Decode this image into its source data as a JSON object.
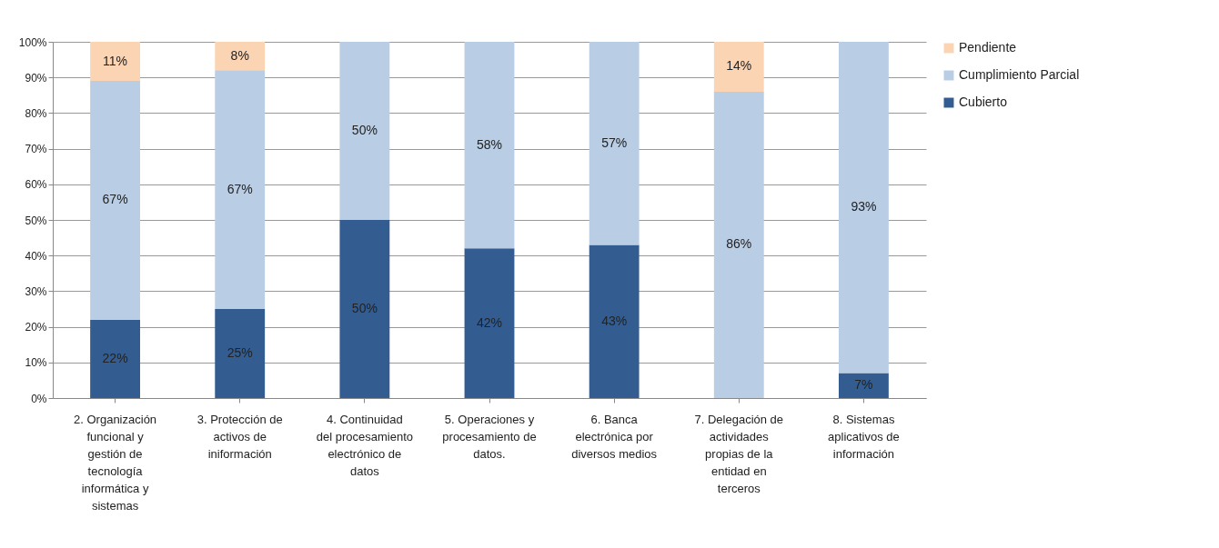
{
  "chart_data": {
    "type": "bar",
    "stacked": true,
    "categories": [
      "2. Organización funcional y gestión de tecnología informática y sistemas",
      "3. Protección de activos de iniformación",
      "4. Continuidad del procesamiento electrónico de datos",
      "5. Operaciones y procesamiento de datos.",
      "6. Banca electrónica por diversos medios",
      "7. Delegación de actividades propias de la entidad en terceros",
      "8. Sistemas aplicativos de información"
    ],
    "series": [
      {
        "name": "Cubierto",
        "color": "#335d91",
        "values": [
          22,
          25,
          50,
          42,
          43,
          null,
          7
        ],
        "value_labels": [
          "22%",
          "25%",
          "50%",
          "42%",
          "43%",
          null,
          "7%"
        ]
      },
      {
        "name": "Cumplimiento Parcial",
        "color": "#b9cde5",
        "values": [
          67,
          67,
          50,
          58,
          57,
          86,
          93
        ],
        "value_labels": [
          "67%",
          "67%",
          "50%",
          "58%",
          "57%",
          "86%",
          "93%"
        ]
      },
      {
        "name": "Pendiente",
        "color": "#fbd4b3",
        "values": [
          11,
          8,
          null,
          null,
          null,
          14,
          null
        ],
        "value_labels": [
          "11%",
          "8%",
          null,
          null,
          null,
          "14%",
          null
        ]
      }
    ],
    "ylim": [
      0,
      100
    ],
    "yticks": [
      {
        "value": 0,
        "label": "0%"
      },
      {
        "value": 10,
        "label": "10%"
      },
      {
        "value": 20,
        "label": "20%"
      },
      {
        "value": 30,
        "label": "30%"
      },
      {
        "value": 40,
        "label": "40%"
      },
      {
        "value": 50,
        "label": "50%"
      },
      {
        "value": 60,
        "label": "60%"
      },
      {
        "value": 70,
        "label": "70%"
      },
      {
        "value": 80,
        "label": "80%"
      },
      {
        "value": 90,
        "label": "90%"
      },
      {
        "value": 100,
        "label": "100%"
      }
    ],
    "grid": "y",
    "legend": "right"
  }
}
